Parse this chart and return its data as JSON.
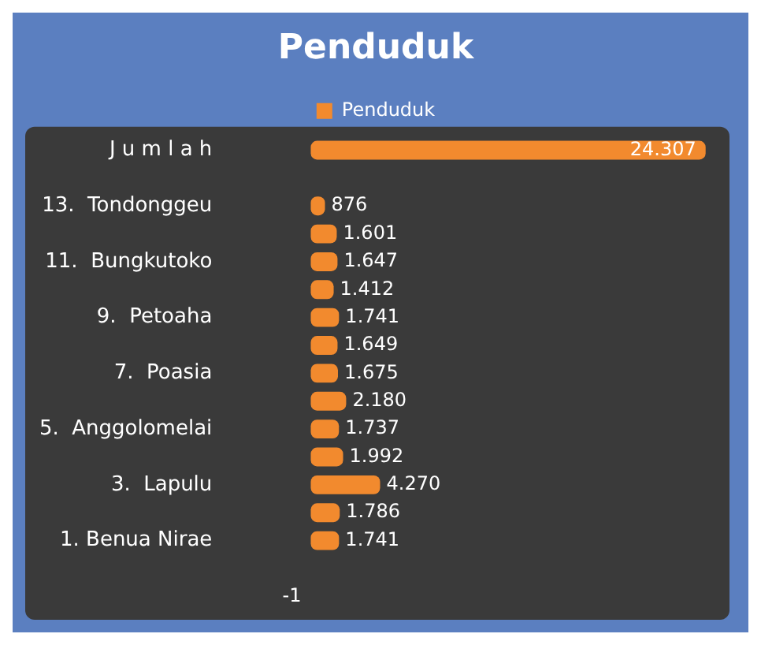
{
  "chart_data": {
    "type": "bar",
    "orientation": "horizontal",
    "title": "Penduduk",
    "categories": [
      "J u m l a h",
      null,
      "13.  Tondonggeu",
      null,
      "11.  Bungkutoko",
      null,
      "9.  Petoaha",
      null,
      "7.  Poasia",
      null,
      "5.  Anggolomelai",
      null,
      "3.  Lapulu",
      null,
      "1. Benua Nirae",
      null,
      null
    ],
    "series": [
      {
        "name": "Penduduk",
        "color": "#f28a2e",
        "values": [
          24307,
          null,
          876,
          1601,
          1647,
          1412,
          1741,
          1649,
          1675,
          2180,
          1737,
          1992,
          4270,
          1786,
          1741,
          null,
          -1
        ],
        "value_labels": [
          "24.307",
          null,
          "876",
          "1.601",
          "1.647",
          "1.412",
          "1.741",
          "1.649",
          "1.675",
          "2.180",
          "1.737",
          "1.992",
          "4.270",
          "1.786",
          "1.741",
          null,
          "-1"
        ]
      }
    ],
    "legend": "top",
    "grid": false,
    "tick_labels": "y"
  }
}
